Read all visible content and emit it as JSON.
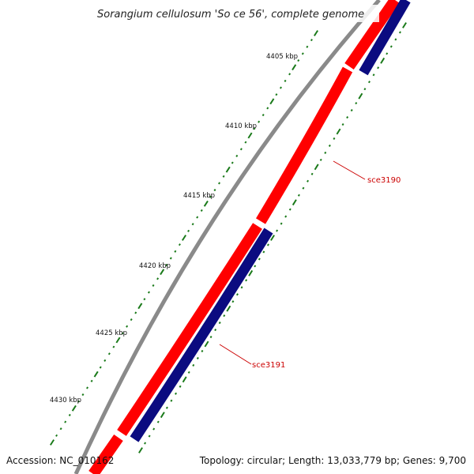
{
  "title": "Sorangium cellulosum 'So ce 56', complete genome",
  "ruler_labels": [
    "4405 kbp",
    "4410 kbp",
    "4415 kbp",
    "4420 kbp",
    "4425 kbp",
    "4430 kbp"
  ],
  "genes": [
    {
      "name": "sce3190",
      "strand": "forward",
      "color": "#ff0000"
    },
    {
      "name": "sce3191",
      "strand": "reverse",
      "color": "#0b0b80"
    }
  ],
  "footer": {
    "accession": "Accession: NC_010162",
    "summary": "Topology: circular; Length: 13,033,779 bp; Genes: 9,700"
  },
  "colors": {
    "backbone": "#8a8a8a",
    "forward_gene": "#ff0000",
    "reverse_gene": "#0b0b80",
    "ticks": "#1a7a1a",
    "label_line": "#cc0000"
  }
}
